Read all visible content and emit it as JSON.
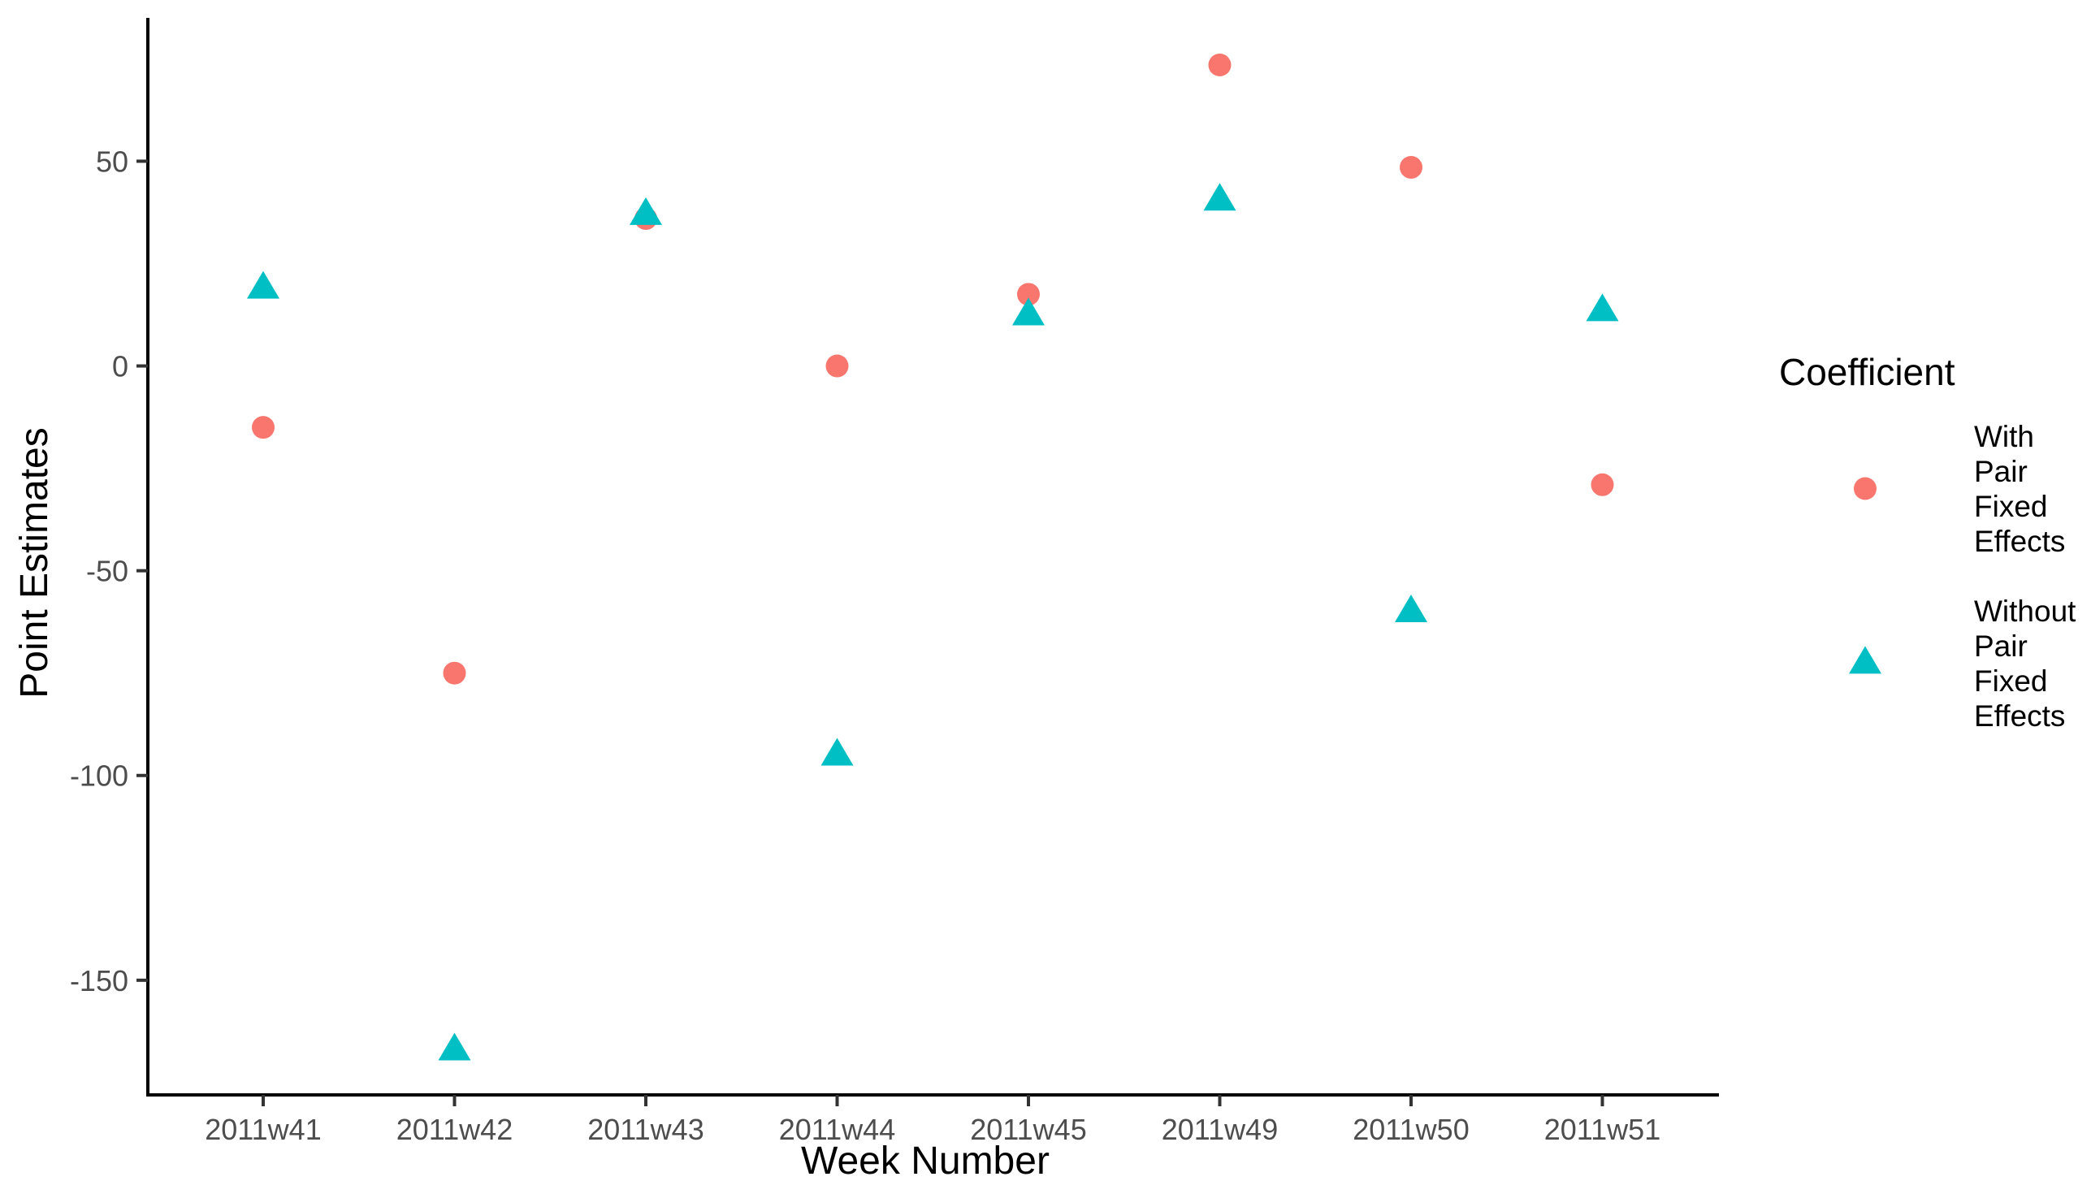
{
  "chart_data": {
    "type": "scatter",
    "title": "",
    "xlabel": "Week Number",
    "ylabel": "Point Estimates",
    "categories": [
      "2011w41",
      "2011w42",
      "2011w43",
      "2011w44",
      "2011w45",
      "2011w49",
      "2011w50",
      "2011w51"
    ],
    "ylim": [
      -178,
      85
    ],
    "yticks": [
      -150,
      -100,
      -50,
      0,
      50
    ],
    "grid": false,
    "legend": {
      "title": "Coefficient",
      "position": "right",
      "entries": [
        {
          "label_lines": [
            "With",
            "Pair",
            "Fixed",
            "Effects"
          ],
          "shape": "circle",
          "color": "#F8766D"
        },
        {
          "label_lines": [
            "Without",
            "Pair",
            "Fixed",
            "Effects"
          ],
          "shape": "triangle",
          "color": "#00BFC4"
        }
      ]
    },
    "series": [
      {
        "name": "With Pair Fixed Effects",
        "shape": "circle",
        "color": "#F8766D",
        "values": [
          -15,
          -75,
          36,
          0,
          17.5,
          73.5,
          48.5,
          -29
        ]
      },
      {
        "name": "Without Pair Fixed Effects",
        "shape": "triangle",
        "color": "#00BFC4",
        "values": [
          19,
          -167,
          37,
          -95,
          12.5,
          40.5,
          -60,
          13.5
        ]
      }
    ]
  }
}
